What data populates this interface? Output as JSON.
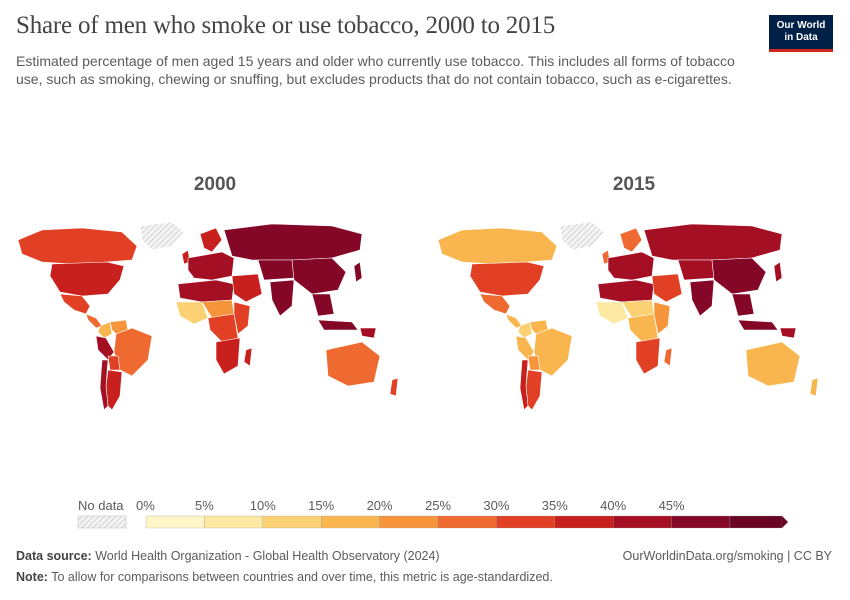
{
  "header": {
    "title": "Share of men who smoke or use tobacco, 2000 to 2015",
    "subtitle": "Estimated percentage of men aged 15 years and older who currently use tobacco. This includes all forms of tobacco use, such as smoking, chewing or snuffing, but excludes products that do not contain tobacco, such as e-cigarettes.",
    "logo_line1": "Our World",
    "logo_line2": "in Data"
  },
  "panels": [
    {
      "year": "2000"
    },
    {
      "year": "2015"
    }
  ],
  "legend": {
    "no_data_label": "No data",
    "bins": [
      "0%",
      "5%",
      "10%",
      "15%",
      "20%",
      "25%",
      "30%",
      "35%",
      "40%",
      "45%"
    ],
    "colors": [
      "#fef6c6",
      "#fde9a2",
      "#fbd174",
      "#f9b64e",
      "#f7953c",
      "#ee6a30",
      "#e14024",
      "#c8201d",
      "#a50f24",
      "#850727",
      "#6a0424"
    ]
  },
  "regions": {
    "2000": {
      "greenland": "nodata",
      "canada": "#e14024",
      "usa": "#c8201d",
      "mexico": "#e14024",
      "central_america": "#ee6a30",
      "colombia": "#f9b64e",
      "venezuela": "#f7953c",
      "brazil": "#ee6a30",
      "peru": "#a50f24",
      "bolivia": "#e14024",
      "argentina": "#c8201d",
      "chile": "#a50f24",
      "uk": "#c8201d",
      "scandinavia": "#c8201d",
      "europe": "#a50f24",
      "russia": "#850727",
      "north_africa": "#a50f24",
      "west_africa": "#fbd174",
      "sahel": "#f7953c",
      "central_africa": "#e14024",
      "east_africa": "#e14024",
      "southern_africa": "#c8201d",
      "madagascar": "#c8201d",
      "middle_east": "#c8201d",
      "central_asia": "#850727",
      "india": "#850727",
      "china": "#850727",
      "southeast_asia": "#850727",
      "japan": "#850727",
      "indonesia": "#850727",
      "australia": "#ee6a30",
      "new_zealand": "#e14024",
      "png": "#a50f24"
    },
    "2015": {
      "greenland": "nodata",
      "canada": "#f9b64e",
      "usa": "#e14024",
      "mexico": "#ee6a30",
      "central_america": "#f9b64e",
      "colombia": "#fbd174",
      "venezuela": "#f9b64e",
      "brazil": "#f9b64e",
      "peru": "#f9b64e",
      "bolivia": "#f7953c",
      "argentina": "#e14024",
      "chile": "#c8201d",
      "uk": "#ee6a30",
      "scandinavia": "#ee6a30",
      "europe": "#a50f24",
      "russia": "#a50f24",
      "north_africa": "#a50f24",
      "west_africa": "#fde9a2",
      "sahel": "#fbd174",
      "central_africa": "#f9b64e",
      "east_africa": "#f7953c",
      "southern_africa": "#e14024",
      "madagascar": "#ee6a30",
      "middle_east": "#e14024",
      "central_asia": "#a50f24",
      "india": "#850727",
      "china": "#850727",
      "southeast_asia": "#850727",
      "japan": "#a50f24",
      "indonesia": "#850727",
      "australia": "#f9b64e",
      "new_zealand": "#f9b64e",
      "png": "#a50f24"
    }
  },
  "footer": {
    "source_label": "Data source:",
    "source_text": "World Health Organization - Global Health Observatory (2024)",
    "url": "OurWorldinData.org/smoking | CC BY",
    "note_label": "Note:",
    "note_text": "To allow for comparisons between countries and over time, this metric is age-standardized."
  }
}
